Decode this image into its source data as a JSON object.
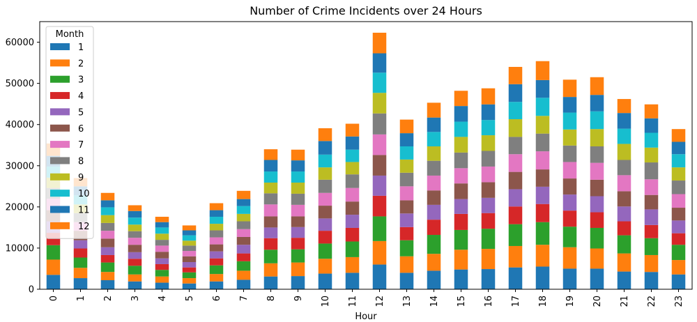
{
  "chart_data": {
    "type": "bar",
    "stacked": true,
    "title": "Number of Crime Incidents over 24 Hours",
    "xlabel": "Hour",
    "ylabel": "",
    "ylim": [
      0,
      65000
    ],
    "yticks": [
      0,
      10000,
      20000,
      30000,
      40000,
      50000,
      60000
    ],
    "grid": false,
    "legend": {
      "title": "Month",
      "placement": "top-left"
    },
    "categories": [
      "0",
      "1",
      "2",
      "3",
      "4",
      "5",
      "6",
      "7",
      "8",
      "9",
      "10",
      "11",
      "12",
      "13",
      "14",
      "15",
      "16",
      "17",
      "18",
      "19",
      "20",
      "21",
      "22",
      "23"
    ],
    "series": [
      {
        "name": "1",
        "color": "#1f77b4",
        "values": [
          3500,
          2700,
          2200,
          1900,
          1600,
          1400,
          1900,
          2300,
          3100,
          3200,
          3800,
          4000,
          6000,
          4000,
          4500,
          4800,
          4900,
          5300,
          5500,
          5000,
          5000,
          4300,
          4200,
          3600
        ]
      },
      {
        "name": "2",
        "color": "#ff7f0e",
        "values": [
          3700,
          2500,
          2000,
          1700,
          1500,
          1300,
          1800,
          2200,
          3200,
          3300,
          3600,
          3800,
          5700,
          4000,
          4100,
          4800,
          4900,
          5200,
          5300,
          5200,
          4900,
          4400,
          4100,
          3500
        ]
      },
      {
        "name": "3",
        "color": "#2ca02c",
        "values": [
          3500,
          2500,
          2300,
          2100,
          1600,
          1400,
          2100,
          2300,
          3300,
          3200,
          3700,
          3800,
          6000,
          3900,
          4600,
          4800,
          4900,
          5300,
          5500,
          5000,
          5000,
          4400,
          4100,
          3700
        ]
      },
      {
        "name": "4",
        "color": "#d62728",
        "values": [
          3000,
          2200,
          1800,
          1700,
          1400,
          1200,
          1700,
          1900,
          2800,
          2800,
          3100,
          3300,
          5000,
          3200,
          3700,
          3900,
          3800,
          4300,
          4400,
          3900,
          3800,
          3400,
          3200,
          2800
        ]
      },
      {
        "name": "5",
        "color": "#9467bd",
        "values": [
          2800,
          2000,
          1900,
          1600,
          1400,
          1300,
          1700,
          2100,
          2600,
          2600,
          3000,
          3200,
          4900,
          3300,
          3600,
          3600,
          3700,
          4200,
          4200,
          3900,
          3900,
          3600,
          3800,
          3100
        ]
      },
      {
        "name": "6",
        "color": "#8c564b",
        "values": [
          2700,
          2300,
          2100,
          1800,
          1600,
          1400,
          1700,
          1900,
          2700,
          2600,
          3100,
          3200,
          5000,
          3200,
          3500,
          3800,
          3800,
          4200,
          4200,
          3900,
          4000,
          3700,
          3500,
          3100
        ]
      },
      {
        "name": "7",
        "color": "#e377c2",
        "values": [
          2800,
          2100,
          1900,
          1700,
          1500,
          1300,
          1700,
          1900,
          2900,
          2800,
          3100,
          3300,
          5000,
          3400,
          3600,
          3700,
          3800,
          4300,
          4400,
          4000,
          4100,
          3900,
          3800,
          3300
        ]
      },
      {
        "name": "8",
        "color": "#7f7f7f",
        "values": [
          2600,
          2200,
          1900,
          1600,
          1400,
          1300,
          1700,
          1900,
          2700,
          2700,
          3200,
          3300,
          5100,
          3300,
          3600,
          3800,
          3800,
          4200,
          4300,
          4000,
          4000,
          3700,
          4100,
          3300
        ]
      },
      {
        "name": "9",
        "color": "#bcbd22",
        "values": [
          2500,
          2100,
          1900,
          1600,
          1500,
          1200,
          1600,
          1800,
          2600,
          2700,
          3000,
          3000,
          5000,
          3200,
          3500,
          3800,
          3800,
          4300,
          4300,
          3900,
          4200,
          3900,
          3600,
          3200
        ]
      },
      {
        "name": "10",
        "color": "#17becf",
        "values": [
          2700,
          2200,
          1900,
          1700,
          1500,
          1300,
          1700,
          1900,
          2700,
          2700,
          3100,
          3000,
          4900,
          3200,
          3500,
          3700,
          3700,
          4200,
          4400,
          4100,
          4300,
          3700,
          3600,
          3200
        ]
      },
      {
        "name": "11",
        "color": "#1f77b4",
        "values": [
          2600,
          2200,
          1700,
          1600,
          1300,
          1200,
          1600,
          1700,
          2800,
          2700,
          3300,
          3200,
          4700,
          3200,
          3500,
          3800,
          3800,
          4300,
          4300,
          3800,
          4000,
          3800,
          3500,
          3000
        ]
      },
      {
        "name": "12",
        "color": "#ff7f0e",
        "values": [
          3000,
          2000,
          1800,
          1400,
          1300,
          1200,
          1700,
          2000,
          2600,
          2600,
          3100,
          3100,
          5000,
          3300,
          3600,
          3700,
          3900,
          4200,
          4600,
          4200,
          4300,
          3400,
          3400,
          3100
        ]
      }
    ]
  }
}
